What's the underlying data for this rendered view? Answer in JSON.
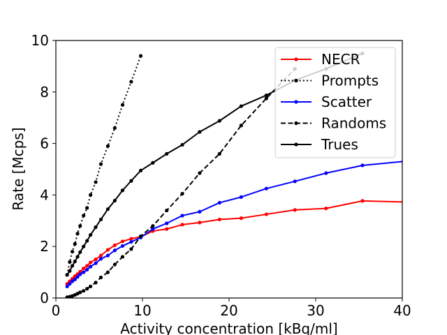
{
  "chart_data": {
    "type": "line",
    "title": "",
    "xlabel": "Activity concentration [kBq/ml]",
    "ylabel": "Rate [Mcps]",
    "xlim": [
      0,
      40
    ],
    "ylim": [
      0,
      10
    ],
    "xticks": [
      0,
      10,
      20,
      30,
      40
    ],
    "xtick_labels": [
      "0",
      "10",
      "20",
      "30",
      "40"
    ],
    "yticks": [
      0,
      2,
      4,
      6,
      8,
      10
    ],
    "ytick_labels": [
      "0",
      "2",
      "4",
      "6",
      "8",
      "10"
    ],
    "grid": false,
    "legend_position": "top-right",
    "series": [
      {
        "name": "NECR",
        "color": "#ff0000",
        "linestyle": "solid",
        "x": [
          1.3,
          1.6,
          1.9,
          2.2,
          2.5,
          2.8,
          3.2,
          3.6,
          4.0,
          4.6,
          5.2,
          6.0,
          6.8,
          7.7,
          8.7,
          9.8,
          11.2,
          12.8,
          14.6,
          16.6,
          18.9,
          21.4,
          24.3,
          27.6,
          31.2,
          35.4,
          40.1
        ],
        "y": [
          0.55,
          0.65,
          0.75,
          0.85,
          0.93,
          1.02,
          1.15,
          1.25,
          1.38,
          1.5,
          1.65,
          1.87,
          2.05,
          2.2,
          2.3,
          2.38,
          2.6,
          2.68,
          2.85,
          2.93,
          3.05,
          3.1,
          3.25,
          3.42,
          3.48,
          3.77,
          3.73
        ]
      },
      {
        "name": "Prompts",
        "color": "#000000",
        "linestyle": "dotted",
        "x": [
          1.3,
          1.6,
          1.9,
          2.2,
          2.5,
          2.8,
          3.2,
          3.6,
          4.0,
          4.6,
          5.2,
          6.0,
          6.8,
          7.7,
          8.7,
          9.8
        ],
        "y": [
          0.9,
          1.4,
          1.8,
          2.1,
          2.5,
          2.8,
          3.2,
          3.5,
          4.0,
          4.5,
          5.2,
          5.9,
          6.6,
          7.5,
          8.4,
          9.4
        ]
      },
      {
        "name": "Scatter",
        "color": "#0000ff",
        "linestyle": "solid",
        "x": [
          1.3,
          1.6,
          1.9,
          2.2,
          2.5,
          2.8,
          3.2,
          3.6,
          4.0,
          4.6,
          5.2,
          6.0,
          6.8,
          7.7,
          8.7,
          9.8,
          11.2,
          12.8,
          14.6,
          16.6,
          18.9,
          21.4,
          24.3,
          27.6,
          31.2,
          35.4,
          40.1
        ],
        "y": [
          0.45,
          0.55,
          0.65,
          0.72,
          0.82,
          0.92,
          1.0,
          1.1,
          1.22,
          1.35,
          1.52,
          1.65,
          1.85,
          2.02,
          2.18,
          2.35,
          2.68,
          2.9,
          3.2,
          3.35,
          3.7,
          3.92,
          4.25,
          4.53,
          4.85,
          5.15,
          5.3
        ]
      },
      {
        "name": "Randoms",
        "color": "#000000",
        "linestyle": "dashed",
        "x": [
          1.3,
          1.6,
          1.9,
          2.2,
          2.5,
          2.8,
          3.2,
          3.6,
          4.0,
          4.6,
          5.2,
          6.0,
          6.8,
          7.7,
          8.7,
          9.8,
          11.2,
          12.8,
          14.6,
          16.6,
          18.9,
          21.4,
          24.3,
          27.6
        ],
        "y": [
          0.03,
          0.05,
          0.08,
          0.12,
          0.17,
          0.22,
          0.28,
          0.36,
          0.45,
          0.6,
          0.8,
          1.0,
          1.3,
          1.6,
          1.9,
          2.4,
          2.8,
          3.4,
          4.05,
          4.85,
          5.6,
          6.7,
          7.75,
          8.9
        ]
      },
      {
        "name": "Trues",
        "color": "#000000",
        "linestyle": "solid",
        "x": [
          1.3,
          1.6,
          1.9,
          2.2,
          2.5,
          2.8,
          3.2,
          3.6,
          4.0,
          4.6,
          5.2,
          6.0,
          6.8,
          7.7,
          8.7,
          9.8,
          11.2,
          12.8,
          14.6,
          16.6,
          18.9,
          21.4,
          24.3,
          27.6,
          31.2,
          35.4
        ],
        "y": [
          0.9,
          1.05,
          1.25,
          1.42,
          1.6,
          1.78,
          2.0,
          2.22,
          2.45,
          2.75,
          3.05,
          3.45,
          3.78,
          4.18,
          4.55,
          4.95,
          5.25,
          5.6,
          5.95,
          6.45,
          6.88,
          7.45,
          7.87,
          8.45,
          8.9,
          9.5
        ]
      }
    ]
  }
}
